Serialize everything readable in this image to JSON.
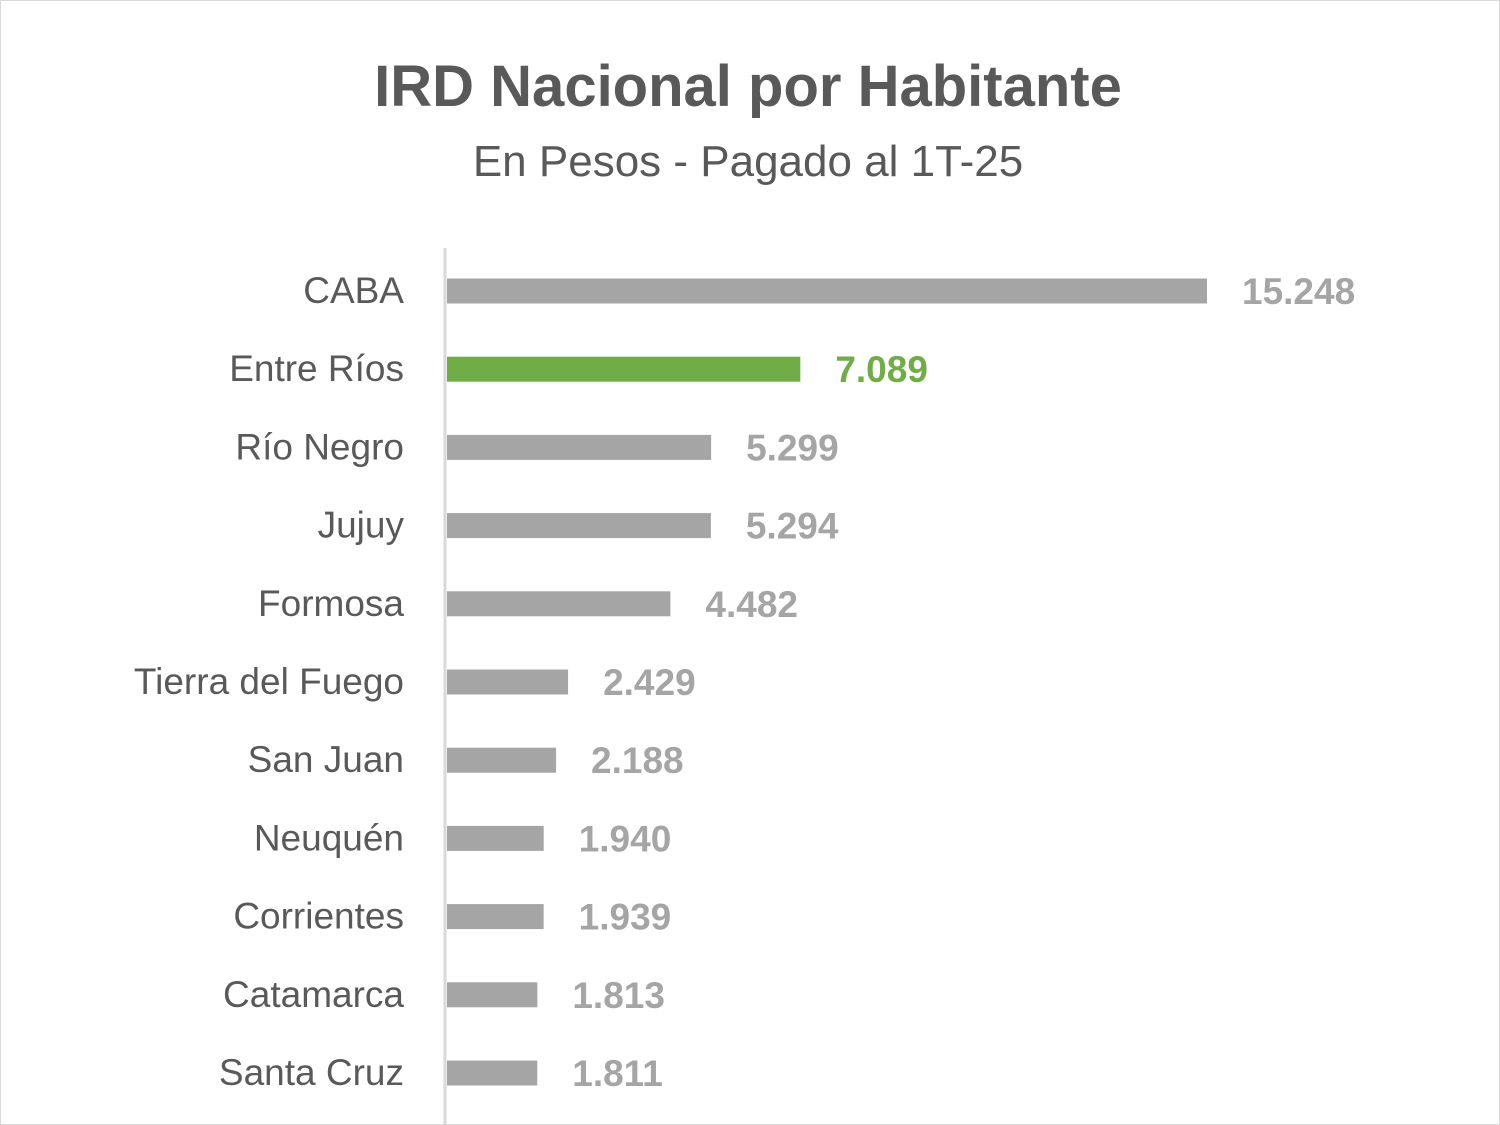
{
  "chart_data": {
    "type": "bar",
    "orientation": "horizontal",
    "title": "IRD Nacional por Habitante",
    "subtitle": "En Pesos - Pagado al 1T-25",
    "categories": [
      "CABA",
      "Entre Ríos",
      "Río Negro",
      "Jujuy",
      "Formosa",
      "Tierra del Fuego",
      "San Juan",
      "Neuquén",
      "Corrientes",
      "Catamarca",
      "Santa Cruz"
    ],
    "values": [
      15248,
      7089,
      5299,
      5294,
      4482,
      2429,
      2188,
      1940,
      1939,
      1813,
      1811
    ],
    "data_labels": [
      "15.248",
      "7.089",
      "5.299",
      "5.294",
      "4.482",
      "2.429",
      "2.188",
      "1.940",
      "1.939",
      "1.813",
      "1.811"
    ],
    "highlight": "Entre Ríos",
    "xlim": [
      0,
      15248
    ],
    "grid": false,
    "legend": "none",
    "colors": {
      "bar": "#a5a5a5",
      "highlight": "#70ad47",
      "label": "#a5a5a5",
      "category": "#595959",
      "title": "#595959",
      "axis": "#d9d9d9"
    }
  }
}
